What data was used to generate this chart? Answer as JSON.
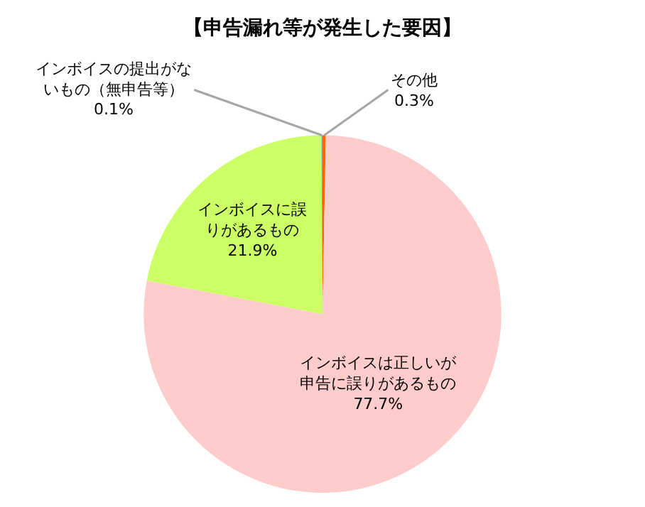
{
  "chart_data": {
    "type": "pie",
    "title": "【申告漏れ等が発生した要因】",
    "categories": [
      "その他",
      "インボイスは正しいが申告に誤りがあるもの",
      "インボイスに誤りがあるもの",
      "インボイスの提出がないもの（無申告等）"
    ],
    "values": [
      0.3,
      77.7,
      21.9,
      0.1
    ],
    "value_labels": [
      "0.3%",
      "77.7%",
      "21.9%",
      "0.1%"
    ],
    "colors": [
      "#ff6600",
      "#ffcccc",
      "#ccff66",
      "#33cccc"
    ],
    "legend": false
  }
}
